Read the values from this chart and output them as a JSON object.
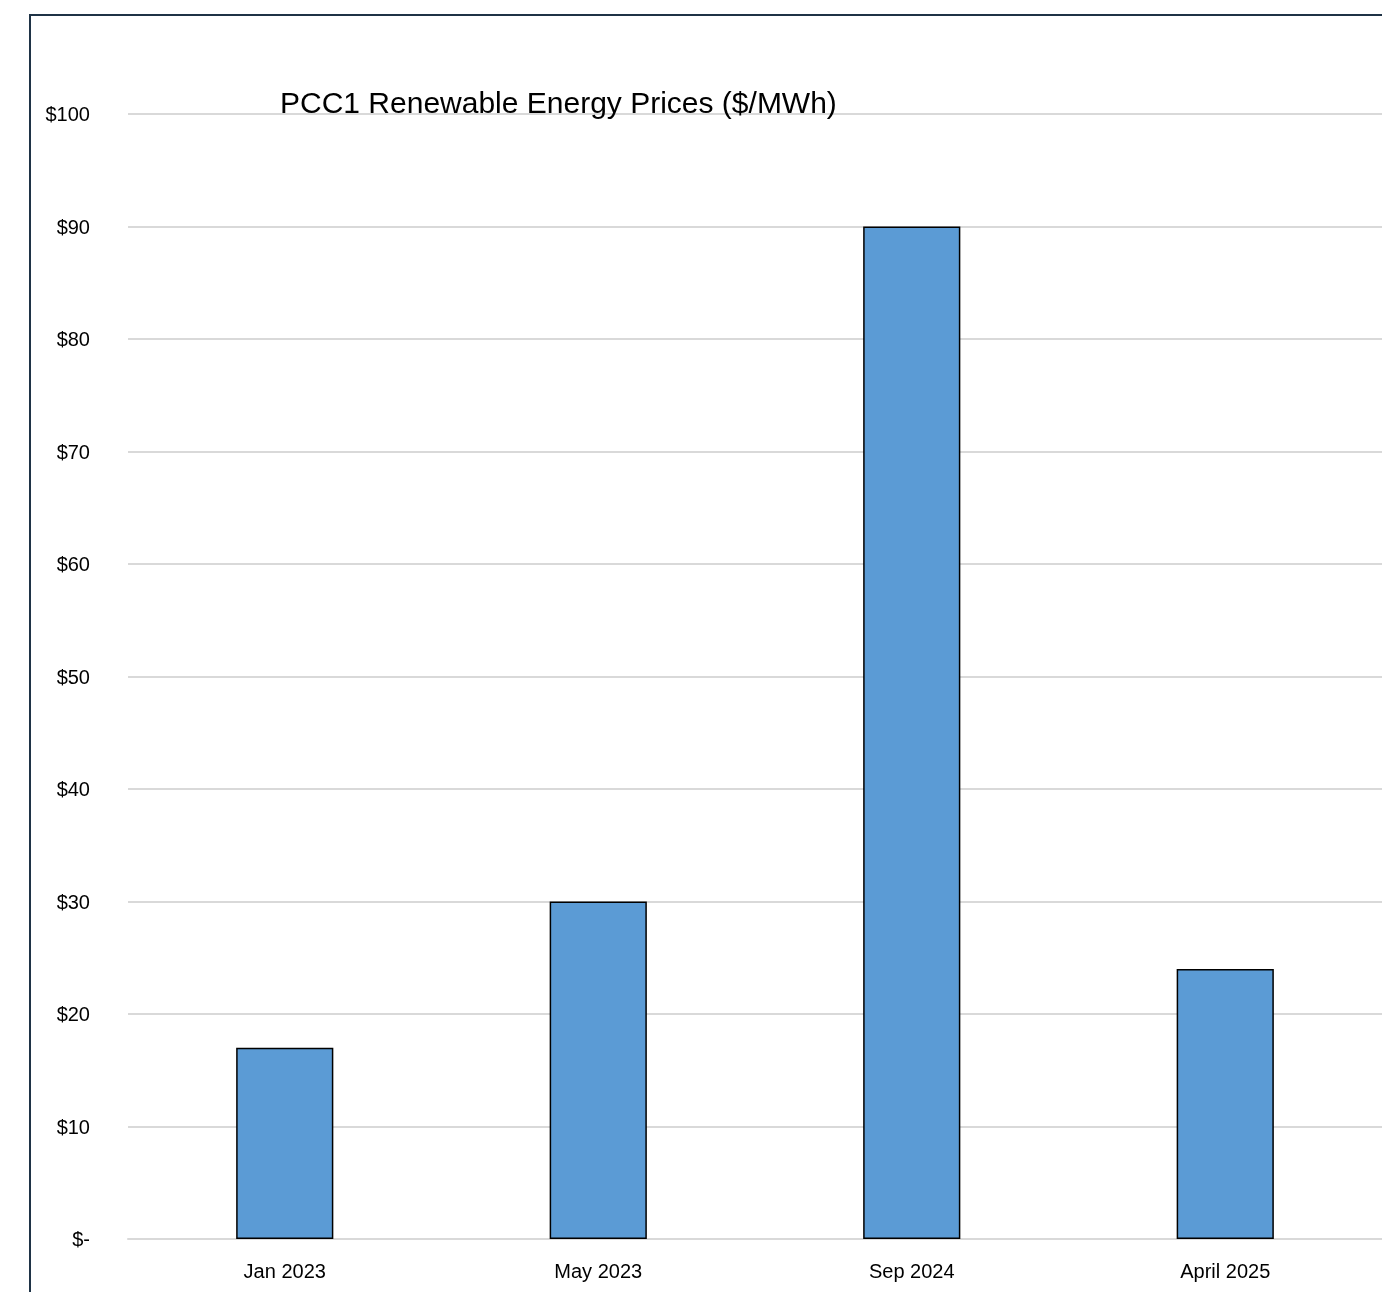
{
  "chart_data": {
    "type": "bar",
    "title": "PCC1 Renewable Energy Prices ($/MWh)",
    "categories": [
      "Jan 2023",
      "May 2023",
      "Sep 2024",
      "April 2025"
    ],
    "values": [
      17,
      30,
      90,
      24
    ],
    "color": "#5b9bd5",
    "ylim": [
      0,
      100
    ],
    "yticks": [
      {
        "value": 0,
        "label": "$-"
      },
      {
        "value": 10,
        "label": "$10"
      },
      {
        "value": 20,
        "label": "$20"
      },
      {
        "value": 30,
        "label": "$30"
      },
      {
        "value": 40,
        "label": "$40"
      },
      {
        "value": 50,
        "label": "$50"
      },
      {
        "value": 60,
        "label": "$60"
      },
      {
        "value": 70,
        "label": "$70"
      },
      {
        "value": 80,
        "label": "$80"
      },
      {
        "value": 90,
        "label": "$90"
      },
      {
        "value": 100,
        "label": "$100"
      }
    ],
    "grid": "y"
  }
}
